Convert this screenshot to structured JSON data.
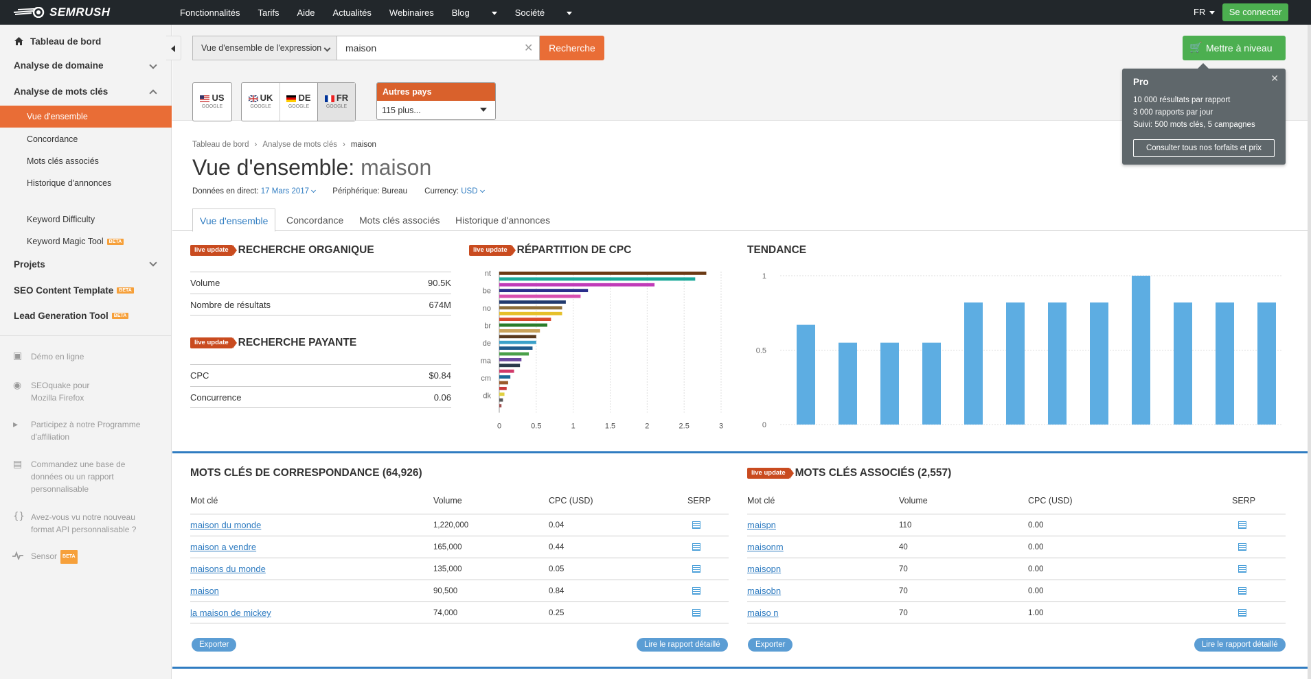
{
  "brand": {
    "logo_text": "SEMRUSH"
  },
  "topnav": {
    "items": [
      "Fonctionnalités",
      "Tarifs",
      "Aide",
      "Actualités",
      "Webinaires",
      "Blog",
      "Société"
    ],
    "lang": "FR",
    "connect_label": "Se connecter"
  },
  "sidebar": {
    "dashboard": "Tableau de bord",
    "domain_analysis": "Analyse de domaine",
    "keyword_analysis": "Analyse de mots clés",
    "keyword_items": [
      "Vue d'ensemble",
      "Concordance",
      "Mots clés associés",
      "Historique d'annonces"
    ],
    "tools": [
      "Keyword Difficulty",
      "Keyword Magic Tool"
    ],
    "projects": "Projets",
    "seo_template": "SEO Content Template",
    "lead_gen": "Lead Generation Tool",
    "beta": "BETA",
    "links": [
      "Démo en ligne",
      "SEOquake pour Mozilla Firefox",
      "Participez à notre Programme d'affiliation",
      "Commandez une base de données ou un rapport personnalisable",
      "Avez-vous vu notre nouveau format API personnalisable ?",
      "Sensor"
    ]
  },
  "search": {
    "type_label": "Vue d'ensemble de l'expression",
    "query": "maison",
    "button": "Recherche",
    "upgrade": "Mettre à niveau"
  },
  "databases": {
    "us": "US",
    "uk": "UK",
    "de": "DE",
    "fr": "FR",
    "engine": "GOOGLE",
    "other_title": "Autres pays",
    "other_value": "115 plus..."
  },
  "tooltip": {
    "title": "Pro",
    "lines": [
      "10 000 résultats par rapport",
      "3 000 rapports par jour",
      "Suivi: 500 mots clés, 5 campagnes"
    ],
    "button": "Consulter tous nos forfaits et prix"
  },
  "breadcrumb": [
    "Tableau de bord",
    "Analyse de mots clés",
    "maison"
  ],
  "page": {
    "title_prefix": "Vue d'ensemble:",
    "title_keyword": "maison",
    "live_label": "Données en direct:",
    "live_date": "17 Mars 2017",
    "device_label": "Périphérique: Bureau",
    "currency_label": "Currency:",
    "currency": "USD"
  },
  "tabs": [
    "Vue d'ensemble",
    "Concordance",
    "Mots clés associés",
    "Historique d'annonces"
  ],
  "live_update": "live update",
  "organic": {
    "title": "RECHERCHE ORGANIQUE",
    "rows": [
      {
        "label": "Volume",
        "value": "90.5K"
      },
      {
        "label": "Nombre de résultats",
        "value": "674M"
      }
    ]
  },
  "paid": {
    "title": "RECHERCHE PAYANTE",
    "rows": [
      {
        "label": "CPC",
        "value": "$0.84"
      },
      {
        "label": "Concurrence",
        "value": "0.06"
      }
    ]
  },
  "chart_data": [
    {
      "type": "bar",
      "orientation": "horizontal",
      "title": "RÉPARTITION DE CPC",
      "category_labels_shown": [
        "nt",
        "be",
        "no",
        "br",
        "de",
        "ma",
        "cm",
        "dk"
      ],
      "values": [
        2.8,
        2.65,
        2.1,
        1.2,
        1.1,
        0.9,
        0.85,
        0.85,
        0.7,
        0.65,
        0.55,
        0.5,
        0.5,
        0.45,
        0.4,
        0.3,
        0.28,
        0.2,
        0.15,
        0.12,
        0.1,
        0.07,
        0.05,
        0.03
      ],
      "colors": [
        "#6b3a14",
        "#1aa99a",
        "#c03bb8",
        "#2b2e8c",
        "#d94fb0",
        "#223a6e",
        "#8c6d3a",
        "#e6c02a",
        "#d94a2a",
        "#2b7d2b",
        "#c9a25a",
        "#5a3a1e",
        "#3aa0c9",
        "#1f5a8c",
        "#4aa04a",
        "#6a4aa0",
        "#2a3a4a",
        "#d03a6a",
        "#1a6a9a",
        "#9a5a2a",
        "#c93a3a",
        "#e0d040",
        "#5a5a5a",
        "#a05050"
      ],
      "xticks": [
        "0",
        "0.5",
        "1",
        "1.5",
        "2",
        "2.5",
        "3"
      ],
      "xlim": [
        0,
        3
      ]
    },
    {
      "type": "bar",
      "title": "TENDANCE",
      "values": [
        0.67,
        0.55,
        0.55,
        0.55,
        0.82,
        0.82,
        0.82,
        0.82,
        1.0,
        0.82,
        0.82,
        0.82
      ],
      "yticks": [
        "1",
        "0.5",
        "0"
      ],
      "ylim": [
        0,
        1
      ],
      "color": "#5dade2"
    }
  ],
  "matching": {
    "title": "MOTS CLÉS DE CORRESPONDANCE (64,926)",
    "headers": [
      "Mot clé",
      "Volume",
      "CPC (USD)",
      "SERP"
    ],
    "rows": [
      {
        "kw": "maison du monde",
        "vol": "1,220,000",
        "cpc": "0.04"
      },
      {
        "kw": "maison a vendre",
        "vol": "165,000",
        "cpc": "0.44"
      },
      {
        "kw": "maisons du monde",
        "vol": "135,000",
        "cpc": "0.05"
      },
      {
        "kw": "maison",
        "vol": "90,500",
        "cpc": "0.84"
      },
      {
        "kw": "la maison de mickey",
        "vol": "74,000",
        "cpc": "0.25"
      }
    ],
    "export": "Exporter",
    "full": "Lire le rapport détaillé"
  },
  "related": {
    "title": "MOTS CLÉS ASSOCIÉS (2,557)",
    "headers": [
      "Mot clé",
      "Volume",
      "CPC (USD)",
      "SERP"
    ],
    "rows": [
      {
        "kw": "maispn",
        "vol": "110",
        "cpc": "0.00"
      },
      {
        "kw": "maisonm",
        "vol": "40",
        "cpc": "0.00"
      },
      {
        "kw": "maisopn",
        "vol": "70",
        "cpc": "0.00"
      },
      {
        "kw": "maisobn",
        "vol": "70",
        "cpc": "0.00"
      },
      {
        "kw": "maiso n",
        "vol": "70",
        "cpc": "1.00"
      }
    ],
    "export": "Exporter",
    "full": "Lire le rapport détaillé"
  }
}
